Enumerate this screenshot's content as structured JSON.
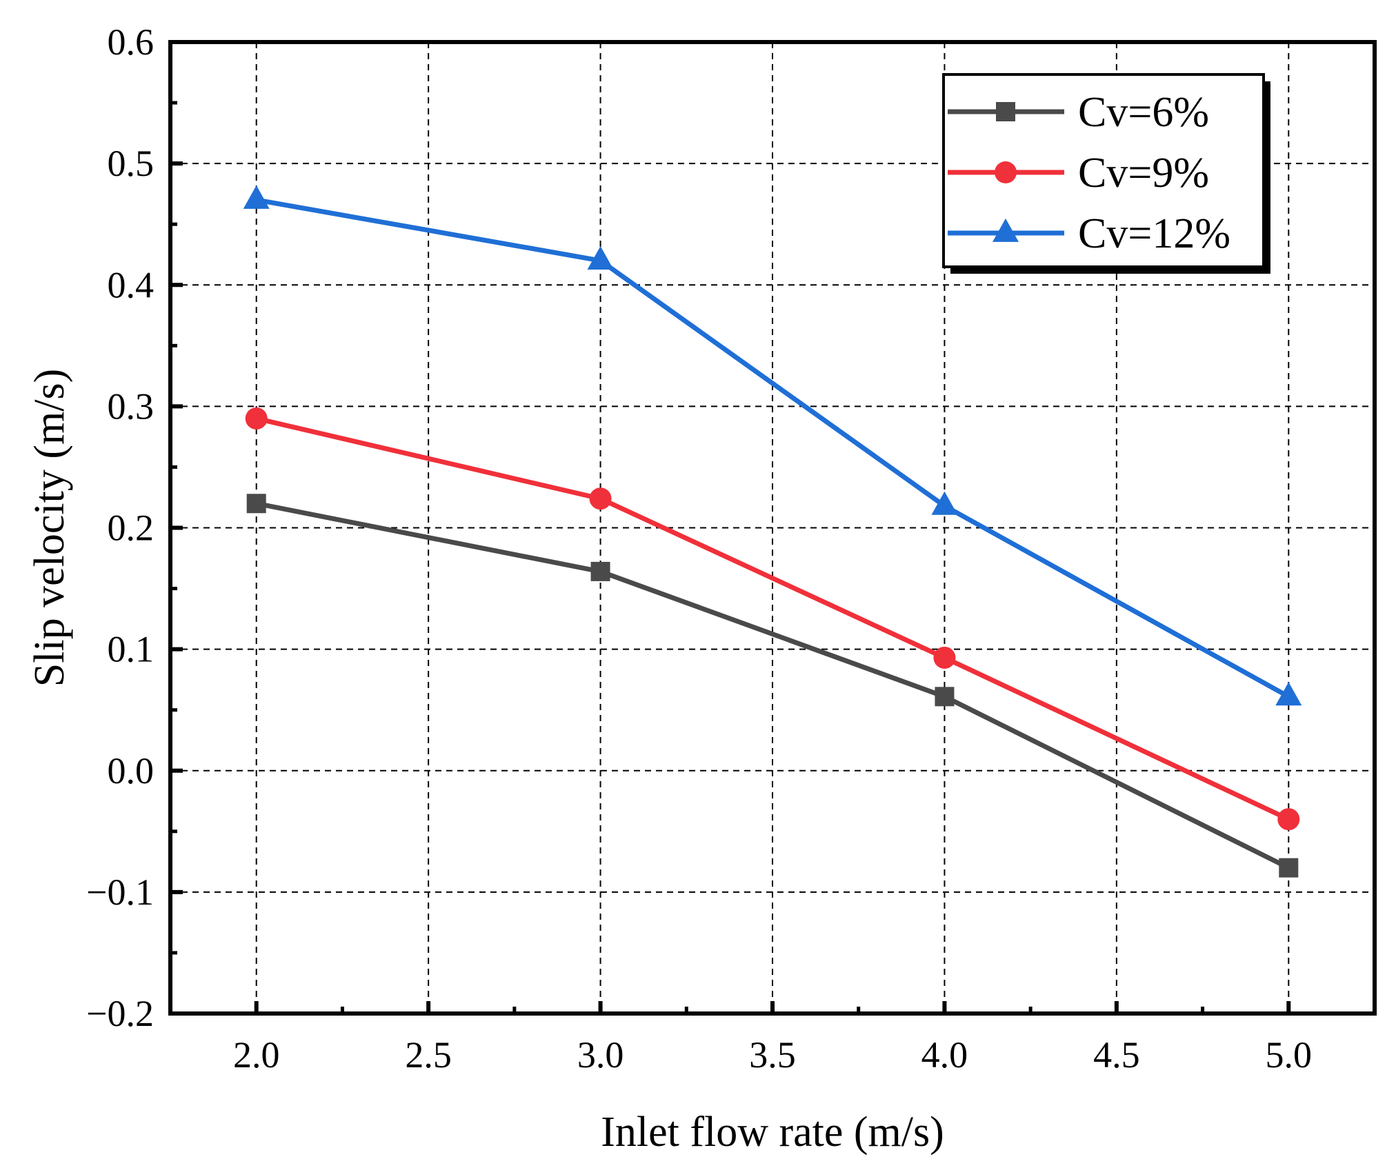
{
  "chart_data": {
    "type": "line",
    "title": "",
    "xlabel": "Inlet flow rate (m/s)",
    "ylabel": "Slip velocity (m/s)",
    "xlim": [
      1.75,
      5.25
    ],
    "ylim": [
      -0.2,
      0.6
    ],
    "xticks": [
      2.0,
      2.5,
      3.0,
      3.5,
      4.0,
      4.5,
      5.0
    ],
    "xtick_labels": [
      "2.0",
      "2.5",
      "3.0",
      "3.5",
      "4.0",
      "4.5",
      "5.0"
    ],
    "yticks": [
      -0.2,
      -0.1,
      0.0,
      0.1,
      0.2,
      0.3,
      0.4,
      0.5,
      0.6
    ],
    "ytick_labels": [
      "−0.2",
      "−0.1",
      "0.0",
      "0.1",
      "0.2",
      "0.3",
      "0.4",
      "0.5",
      "0.6"
    ],
    "grid": true,
    "legend_position": "top-right",
    "x": [
      2.0,
      3.0,
      4.0,
      5.0
    ],
    "series": [
      {
        "name": "Cv=6%",
        "marker": "square",
        "color": "#4a4a4a",
        "values": [
          0.22,
          0.164,
          0.061,
          -0.08
        ]
      },
      {
        "name": "Cv=9%",
        "marker": "circle",
        "color": "#f0303a",
        "values": [
          0.29,
          0.224,
          0.093,
          -0.04
        ]
      },
      {
        "name": "Cv=12%",
        "marker": "triangle",
        "color": "#1f6fd6",
        "values": [
          0.47,
          0.42,
          0.218,
          0.061
        ]
      }
    ]
  }
}
